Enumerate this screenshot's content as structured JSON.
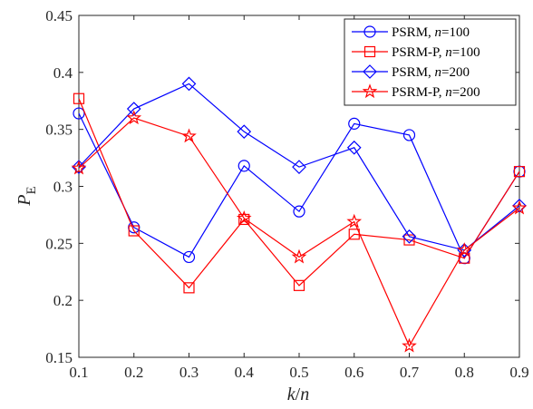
{
  "chart_data": {
    "type": "line",
    "xlabel": "k/n",
    "ylabel": "P_E",
    "ylabel_main": "P",
    "ylabel_sub": "E",
    "xlabel_k": "k",
    "xlabel_slash": "/",
    "xlabel_n": "n",
    "xlim": [
      0.1,
      0.9
    ],
    "ylim": [
      0.15,
      0.45
    ],
    "x_ticks": [
      "0.1",
      "0.2",
      "0.3",
      "0.4",
      "0.5",
      "0.6",
      "0.7",
      "0.8",
      "0.9"
    ],
    "y_ticks": [
      "0.15",
      "0.2",
      "0.25",
      "0.3",
      "0.35",
      "0.4",
      "0.45"
    ],
    "grid": false,
    "legend_position": "top-right",
    "x": [
      0.1,
      0.2,
      0.3,
      0.4,
      0.5,
      0.6,
      0.7,
      0.8,
      0.9
    ],
    "series": [
      {
        "name": "PSRM, n=100",
        "label_prefix": "PSRM, ",
        "label_var": "n",
        "label_suffix": "=100",
        "color": "#0000ff",
        "marker": "circle",
        "values": [
          0.364,
          0.264,
          0.238,
          0.318,
          0.278,
          0.355,
          0.345,
          0.237,
          0.313
        ]
      },
      {
        "name": "PSRM-P, n=100",
        "label_prefix": "PSRM-P, ",
        "label_var": "n",
        "label_suffix": "=100",
        "color": "#ff0000",
        "marker": "square",
        "values": [
          0.377,
          0.261,
          0.211,
          0.271,
          0.213,
          0.258,
          0.253,
          0.237,
          0.313
        ]
      },
      {
        "name": "PSRM, n=200",
        "label_prefix": "PSRM, ",
        "label_var": "n",
        "label_suffix": "=200",
        "color": "#0000ff",
        "marker": "diamond",
        "values": [
          0.317,
          0.368,
          0.39,
          0.348,
          0.317,
          0.334,
          0.256,
          0.244,
          0.283
        ]
      },
      {
        "name": "PSRM-P, n=200",
        "label_prefix": "PSRM-P, ",
        "label_var": "n",
        "label_suffix": "=200",
        "color": "#ff0000",
        "marker": "pentagram",
        "values": [
          0.316,
          0.36,
          0.344,
          0.272,
          0.238,
          0.269,
          0.16,
          0.244,
          0.281
        ]
      }
    ]
  }
}
